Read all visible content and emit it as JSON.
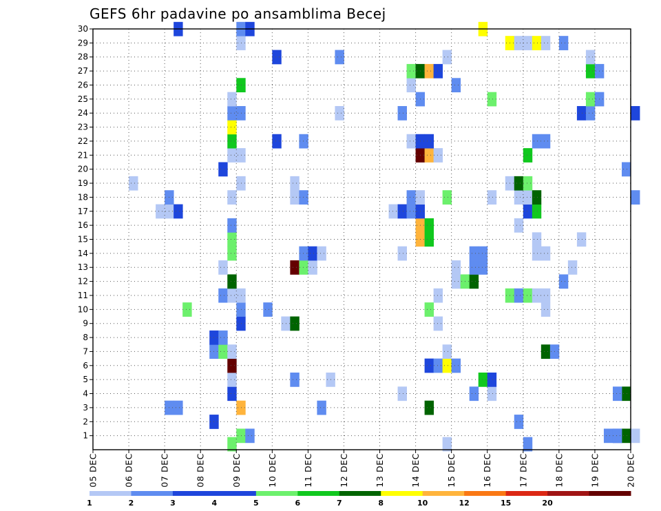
{
  "chart_data": {
    "type": "heatmap",
    "title": "GEFS 6hr padavine po ansamblima Becej",
    "x": {
      "tick_labels": [
        "05 DEC",
        "06 DEC",
        "07 DEC",
        "08 DEC",
        "09 DEC",
        "10 DEC",
        "11 DEC",
        "12 DEC",
        "13 DEC",
        "14 DEC",
        "15 DEC",
        "16 DEC",
        "17 DEC",
        "18 DEC",
        "19 DEC",
        "20 DEC"
      ],
      "range_days": [
        0,
        15
      ],
      "step_hours": 6
    },
    "y": {
      "tick_labels": [
        "1",
        "2",
        "3",
        "4",
        "5",
        "6",
        "7",
        "8",
        "9",
        "10",
        "11",
        "12",
        "13",
        "14",
        "15",
        "16",
        "17",
        "18",
        "19",
        "20",
        "21",
        "22",
        "23",
        "24",
        "25",
        "26",
        "27",
        "28",
        "29",
        "30"
      ],
      "range": [
        0,
        30
      ]
    },
    "grid": true,
    "colorbar": {
      "colors": [
        "#b4c8f5",
        "#5f8cf0",
        "#1e46dc",
        "#1e46dc",
        "#6cf06c",
        "#10c81e",
        "#006400",
        "#ffff00",
        "#ffb43c",
        "#fa7814",
        "#dc2814",
        "#a01414",
        "#640000"
      ],
      "labels": [
        "1",
        "2",
        "3",
        "4",
        "5",
        "6",
        "7",
        "8",
        "10",
        "12",
        "15",
        "20"
      ]
    },
    "cells": [
      {
        "m": 1,
        "t": 16,
        "l": 5
      },
      {
        "m": 1,
        "t": 17,
        "l": 2
      },
      {
        "m": 1,
        "t": 57,
        "l": 2
      },
      {
        "m": 1,
        "t": 58,
        "l": 3
      },
      {
        "m": 1,
        "t": 59,
        "l": 7
      },
      {
        "m": 1,
        "t": 60,
        "l": 1
      },
      {
        "m": 1,
        "t": 58,
        "l": 2
      },
      {
        "m": 1,
        "t": 66,
        "l": 1
      },
      {
        "m": 2,
        "t": 13,
        "l": 3
      },
      {
        "m": 2,
        "t": 47,
        "l": 2
      },
      {
        "m": 3,
        "t": 8,
        "l": 2
      },
      {
        "m": 3,
        "t": 9,
        "l": 2
      },
      {
        "m": 3,
        "t": 16,
        "l": 9
      },
      {
        "m": 3,
        "t": 25,
        "l": 2
      },
      {
        "m": 3,
        "t": 37,
        "l": 7
      },
      {
        "m": 3,
        "t": 67,
        "l": 11
      },
      {
        "m": 4,
        "t": 15,
        "l": 3
      },
      {
        "m": 4,
        "t": 44,
        "l": 1
      },
      {
        "m": 4,
        "t": 59,
        "l": 7
      },
      {
        "m": 4,
        "t": 58,
        "l": 2
      },
      {
        "m": 4,
        "t": 68,
        "l": 5
      },
      {
        "m": 4,
        "t": 34,
        "l": 1
      },
      {
        "m": 4,
        "t": 42,
        "l": 2
      },
      {
        "m": 5,
        "t": 15,
        "l": 1
      },
      {
        "m": 5,
        "t": 22,
        "l": 2
      },
      {
        "m": 5,
        "t": 26,
        "l": 1
      },
      {
        "m": 5,
        "t": 43,
        "l": 6
      },
      {
        "m": 5,
        "t": 44,
        "l": 3
      },
      {
        "m": 5,
        "t": 66,
        "l": 1
      },
      {
        "m": 5,
        "t": 67,
        "l": 1
      },
      {
        "m": 6,
        "t": 15,
        "l": 15
      },
      {
        "m": 6,
        "t": 37,
        "l": 3
      },
      {
        "m": 6,
        "t": 38,
        "l": 2
      },
      {
        "m": 6,
        "t": 39,
        "l": 8
      },
      {
        "m": 6,
        "t": 40,
        "l": 2
      },
      {
        "m": 7,
        "t": 13,
        "l": 2
      },
      {
        "m": 7,
        "t": 14,
        "l": 5
      },
      {
        "m": 7,
        "t": 15,
        "l": 1
      },
      {
        "m": 7,
        "t": 39,
        "l": 1
      },
      {
        "m": 7,
        "t": 50,
        "l": 7
      },
      {
        "m": 7,
        "t": 51,
        "l": 2
      },
      {
        "m": 8,
        "t": 13,
        "l": 3
      },
      {
        "m": 8,
        "t": 14,
        "l": 2
      },
      {
        "m": 9,
        "t": 16,
        "l": 3
      },
      {
        "m": 9,
        "t": 21,
        "l": 1
      },
      {
        "m": 9,
        "t": 22,
        "l": 7
      },
      {
        "m": 9,
        "t": 38,
        "l": 1
      },
      {
        "m": 10,
        "t": 10,
        "l": 5
      },
      {
        "m": 10,
        "t": 16,
        "l": 2
      },
      {
        "m": 10,
        "t": 19,
        "l": 2
      },
      {
        "m": 10,
        "t": 37,
        "l": 5
      },
      {
        "m": 10,
        "t": 50,
        "l": 1
      },
      {
        "m": 11,
        "t": 14,
        "l": 2
      },
      {
        "m": 11,
        "t": 15,
        "l": 1
      },
      {
        "m": 11,
        "t": 16,
        "l": 1
      },
      {
        "m": 11,
        "t": 38,
        "l": 1
      },
      {
        "m": 11,
        "t": 46,
        "l": 5
      },
      {
        "m": 11,
        "t": 47,
        "l": 2
      },
      {
        "m": 11,
        "t": 48,
        "l": 5
      },
      {
        "m": 11,
        "t": 49,
        "l": 1
      },
      {
        "m": 11,
        "t": 50,
        "l": 1
      },
      {
        "m": 12,
        "t": 15,
        "l": 7
      },
      {
        "m": 12,
        "t": 40,
        "l": 1
      },
      {
        "m": 12,
        "t": 41,
        "l": 5
      },
      {
        "m": 12,
        "t": 42,
        "l": 7
      },
      {
        "m": 12,
        "t": 52,
        "l": 2
      },
      {
        "m": 13,
        "t": 14,
        "l": 1
      },
      {
        "m": 13,
        "t": 22,
        "l": 13
      },
      {
        "m": 13,
        "t": 23,
        "l": 5
      },
      {
        "m": 13,
        "t": 24,
        "l": 1
      },
      {
        "m": 13,
        "t": 40,
        "l": 1
      },
      {
        "m": 13,
        "t": 42,
        "l": 2
      },
      {
        "m": 13,
        "t": 43,
        "l": 2
      },
      {
        "m": 13,
        "t": 53,
        "l": 1
      },
      {
        "m": 14,
        "t": 15,
        "l": 5
      },
      {
        "m": 14,
        "t": 23,
        "l": 2
      },
      {
        "m": 14,
        "t": 24,
        "l": 3
      },
      {
        "m": 14,
        "t": 25,
        "l": 1
      },
      {
        "m": 14,
        "t": 34,
        "l": 1
      },
      {
        "m": 14,
        "t": 42,
        "l": 2
      },
      {
        "m": 14,
        "t": 43,
        "l": 2
      },
      {
        "m": 14,
        "t": 49,
        "l": 1
      },
      {
        "m": 14,
        "t": 50,
        "l": 1
      },
      {
        "m": 15,
        "t": 15,
        "l": 5
      },
      {
        "m": 15,
        "t": 36,
        "l": 9
      },
      {
        "m": 15,
        "t": 37,
        "l": 6
      },
      {
        "m": 15,
        "t": 49,
        "l": 1
      },
      {
        "m": 15,
        "t": 54,
        "l": 1
      },
      {
        "m": 16,
        "t": 15,
        "l": 2
      },
      {
        "m": 16,
        "t": 36,
        "l": 9
      },
      {
        "m": 16,
        "t": 37,
        "l": 6
      },
      {
        "m": 16,
        "t": 47,
        "l": 1
      },
      {
        "m": 17,
        "t": 7,
        "l": 1
      },
      {
        "m": 17,
        "t": 8,
        "l": 1
      },
      {
        "m": 17,
        "t": 9,
        "l": 3
      },
      {
        "m": 17,
        "t": 33,
        "l": 1
      },
      {
        "m": 17,
        "t": 34,
        "l": 3
      },
      {
        "m": 17,
        "t": 35,
        "l": 2
      },
      {
        "m": 17,
        "t": 36,
        "l": 3
      },
      {
        "m": 17,
        "t": 48,
        "l": 3
      },
      {
        "m": 17,
        "t": 49,
        "l": 6
      },
      {
        "m": 18,
        "t": 8,
        "l": 2
      },
      {
        "m": 18,
        "t": 15,
        "l": 1
      },
      {
        "m": 18,
        "t": 22,
        "l": 1
      },
      {
        "m": 18,
        "t": 23,
        "l": 2
      },
      {
        "m": 18,
        "t": 35,
        "l": 2
      },
      {
        "m": 18,
        "t": 36,
        "l": 1
      },
      {
        "m": 18,
        "t": 39,
        "l": 5
      },
      {
        "m": 18,
        "t": 44,
        "l": 1
      },
      {
        "m": 18,
        "t": 47,
        "l": 1
      },
      {
        "m": 18,
        "t": 48,
        "l": 1
      },
      {
        "m": 18,
        "t": 49,
        "l": 7
      },
      {
        "m": 18,
        "t": 60,
        "l": 2
      },
      {
        "m": 19,
        "t": 4,
        "l": 1
      },
      {
        "m": 19,
        "t": 16,
        "l": 1
      },
      {
        "m": 19,
        "t": 22,
        "l": 1
      },
      {
        "m": 19,
        "t": 46,
        "l": 1
      },
      {
        "m": 19,
        "t": 47,
        "l": 7
      },
      {
        "m": 19,
        "t": 48,
        "l": 5
      },
      {
        "m": 20,
        "t": 14,
        "l": 3
      },
      {
        "m": 20,
        "t": 59,
        "l": 2
      },
      {
        "m": 21,
        "t": 15,
        "l": 1
      },
      {
        "m": 21,
        "t": 16,
        "l": 1
      },
      {
        "m": 21,
        "t": 36,
        "l": 13
      },
      {
        "m": 21,
        "t": 37,
        "l": 9
      },
      {
        "m": 21,
        "t": 38,
        "l": 1
      },
      {
        "m": 21,
        "t": 48,
        "l": 6
      },
      {
        "m": 22,
        "t": 15,
        "l": 6
      },
      {
        "m": 22,
        "t": 20,
        "l": 3
      },
      {
        "m": 22,
        "t": 23,
        "l": 2
      },
      {
        "m": 22,
        "t": 35,
        "l": 1
      },
      {
        "m": 22,
        "t": 36,
        "l": 3
      },
      {
        "m": 22,
        "t": 37,
        "l": 3
      },
      {
        "m": 22,
        "t": 49,
        "l": 2
      },
      {
        "m": 22,
        "t": 50,
        "l": 2
      },
      {
        "m": 23,
        "t": 15,
        "l": 8
      },
      {
        "m": 24,
        "t": 15,
        "l": 2
      },
      {
        "m": 24,
        "t": 16,
        "l": 2
      },
      {
        "m": 24,
        "t": 27,
        "l": 1
      },
      {
        "m": 24,
        "t": 34,
        "l": 2
      },
      {
        "m": 24,
        "t": 54,
        "l": 3
      },
      {
        "m": 24,
        "t": 55,
        "l": 2
      },
      {
        "m": 24,
        "t": 60,
        "l": 3
      },
      {
        "m": 25,
        "t": 15,
        "l": 1
      },
      {
        "m": 25,
        "t": 36,
        "l": 2
      },
      {
        "m": 25,
        "t": 44,
        "l": 5
      },
      {
        "m": 25,
        "t": 55,
        "l": 5
      },
      {
        "m": 25,
        "t": 56,
        "l": 2
      },
      {
        "m": 26,
        "t": 16,
        "l": 6
      },
      {
        "m": 26,
        "t": 35,
        "l": 1
      },
      {
        "m": 26,
        "t": 40,
        "l": 2
      },
      {
        "m": 27,
        "t": 35,
        "l": 5
      },
      {
        "m": 27,
        "t": 36,
        "l": 7
      },
      {
        "m": 27,
        "t": 37,
        "l": 9
      },
      {
        "m": 27,
        "t": 38,
        "l": 3
      },
      {
        "m": 27,
        "t": 55,
        "l": 6
      },
      {
        "m": 27,
        "t": 56,
        "l": 2
      },
      {
        "m": 28,
        "t": 20,
        "l": 3
      },
      {
        "m": 28,
        "t": 27,
        "l": 2
      },
      {
        "m": 28,
        "t": 39,
        "l": 1
      },
      {
        "m": 28,
        "t": 55,
        "l": 1
      },
      {
        "m": 29,
        "t": 16,
        "l": 1
      },
      {
        "m": 29,
        "t": 46,
        "l": 8
      },
      {
        "m": 29,
        "t": 47,
        "l": 1
      },
      {
        "m": 29,
        "t": 48,
        "l": 1
      },
      {
        "m": 29,
        "t": 49,
        "l": 8
      },
      {
        "m": 29,
        "t": 50,
        "l": 1
      },
      {
        "m": 29,
        "t": 52,
        "l": 2
      },
      {
        "m": 30,
        "t": 9,
        "l": 3
      },
      {
        "m": 30,
        "t": 16,
        "l": 2
      },
      {
        "m": 30,
        "t": 17,
        "l": 3
      },
      {
        "m": 30,
        "t": 43,
        "l": 8
      },
      {
        "m": 0.4,
        "t": 15,
        "l": 5
      },
      {
        "m": 0.4,
        "t": 39,
        "l": 1
      },
      {
        "m": 0.4,
        "t": 48,
        "l": 2
      }
    ]
  }
}
